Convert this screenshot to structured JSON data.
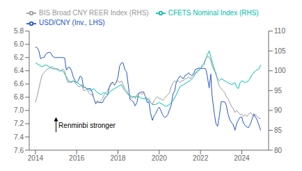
{
  "chart_data": {
    "type": "line",
    "legend": "upper left",
    "grid": false,
    "xlim": [
      2013.7,
      2025.3
    ],
    "xticks": [
      2014,
      2016,
      2018,
      2020,
      2022,
      2024
    ],
    "ylim": [
      7.6,
      5.8
    ],
    "yticks": [
      5.8,
      {
        "value": 6.0,
        "label": "6.0"
      },
      6.2,
      6.4,
      6.6,
      6.8,
      {
        "value": 7.0,
        "label": "7.0"
      },
      7.2,
      7.4,
      7.6
    ],
    "y2lim": [
      80,
      110
    ],
    "y2ticks": [
      80,
      85,
      90,
      95,
      100,
      105,
      110
    ],
    "annotations": [
      {
        "text": "Renminbi stronger",
        "x": 2015.12,
        "y": 7.24,
        "arrow_from": [
          2015.0,
          7.33
        ],
        "arrow_to": [
          2015.0,
          7.1
        ]
      }
    ],
    "series": [
      {
        "name": "USD/CNY (Inv., LHS)",
        "color": "#2255cc",
        "x": [
          2014.0,
          2014.05,
          2014.1,
          2014.17,
          2014.25,
          2014.33,
          2014.42,
          2014.5,
          2014.58,
          2014.67,
          2014.75,
          2014.83,
          2014.92,
          2015.0,
          2015.08,
          2015.17,
          2015.25,
          2015.33,
          2015.42,
          2015.5,
          2015.58,
          2015.67,
          2015.75,
          2015.83,
          2015.92,
          2016.0,
          2016.08,
          2016.17,
          2016.25,
          2016.33,
          2016.42,
          2016.5,
          2016.58,
          2016.67,
          2016.75,
          2016.83,
          2016.92,
          2017.0,
          2017.08,
          2017.17,
          2017.25,
          2017.33,
          2017.42,
          2017.5,
          2017.58,
          2017.67,
          2017.75,
          2017.83,
          2017.92,
          2018.0,
          2018.08,
          2018.17,
          2018.25,
          2018.33,
          2018.42,
          2018.5,
          2018.58,
          2018.67,
          2018.75,
          2018.83,
          2018.92,
          2019.0,
          2019.08,
          2019.17,
          2019.25,
          2019.33,
          2019.42,
          2019.5,
          2019.58,
          2019.67,
          2019.75,
          2019.83,
          2019.92,
          2020.0,
          2020.08,
          2020.17,
          2020.25,
          2020.33,
          2020.42,
          2020.5,
          2020.58,
          2020.67,
          2020.75,
          2020.83,
          2020.92,
          2021.0,
          2021.08,
          2021.17,
          2021.25,
          2021.33,
          2021.42,
          2021.5,
          2021.58,
          2021.67,
          2021.75,
          2021.83,
          2021.92,
          2022.0,
          2022.08,
          2022.17,
          2022.25,
          2022.33,
          2022.42,
          2022.5,
          2022.55,
          2022.58,
          2022.67,
          2022.75,
          2022.83,
          2022.92,
          2023.0,
          2023.08,
          2023.17,
          2023.25,
          2023.33,
          2023.42,
          2023.5,
          2023.58,
          2023.67,
          2023.75,
          2023.83,
          2023.92,
          2024.0,
          2024.08,
          2024.17,
          2024.25,
          2024.33,
          2024.42,
          2024.5,
          2024.58,
          2024.67,
          2024.75,
          2024.83,
          2024.92
        ],
        "values": [
          6.05,
          6.04,
          6.06,
          6.1,
          6.22,
          6.2,
          6.2,
          6.15,
          6.13,
          6.12,
          6.13,
          6.18,
          6.2,
          6.2,
          6.2,
          6.2,
          6.2,
          6.2,
          6.21,
          6.39,
          6.35,
          6.35,
          6.4,
          6.49,
          6.55,
          6.58,
          6.55,
          6.48,
          6.5,
          6.65,
          6.65,
          6.68,
          6.67,
          6.67,
          6.72,
          6.82,
          6.9,
          6.87,
          6.88,
          6.88,
          6.88,
          6.83,
          6.79,
          6.77,
          6.65,
          6.6,
          6.57,
          6.62,
          6.57,
          6.5,
          6.33,
          6.28,
          6.28,
          6.38,
          6.42,
          6.62,
          6.83,
          6.85,
          6.87,
          6.93,
          6.88,
          6.75,
          6.73,
          6.72,
          6.72,
          6.79,
          6.88,
          6.87,
          7.04,
          7.15,
          7.08,
          7.05,
          6.98,
          6.95,
          7.0,
          7.07,
          7.1,
          7.1,
          7.06,
          6.99,
          6.92,
          6.75,
          6.7,
          6.57,
          6.52,
          6.48,
          6.5,
          6.52,
          6.47,
          6.46,
          6.43,
          6.46,
          6.47,
          6.44,
          6.38,
          6.37,
          6.36,
          6.36,
          6.37,
          6.36,
          6.37,
          6.48,
          6.66,
          6.45,
          6.73,
          6.82,
          7.05,
          7.2,
          7.24,
          7.07,
          6.87,
          6.87,
          6.87,
          6.92,
          7.05,
          7.14,
          7.18,
          7.21,
          7.3,
          7.2,
          7.15,
          7.1,
          7.1,
          7.19,
          7.23,
          7.25,
          7.26,
          7.2,
          7.13,
          7.05,
          7.1,
          7.15,
          7.22,
          7.3
        ]
      },
      {
        "name": "CFETS Nominal Index (RHS)",
        "color": "#00bfaa",
        "axis": "y2",
        "x": [
          2014.0,
          2014.17,
          2014.33,
          2014.5,
          2014.67,
          2014.83,
          2015.0,
          2015.17,
          2015.33,
          2015.5,
          2015.67,
          2015.83,
          2016.0,
          2016.17,
          2016.33,
          2016.5,
          2016.67,
          2016.83,
          2017.0,
          2017.17,
          2017.33,
          2017.5,
          2017.67,
          2017.83,
          2018.0,
          2018.17,
          2018.33,
          2018.5,
          2018.67,
          2018.83,
          2019.0,
          2019.17,
          2019.33,
          2019.5,
          2019.67,
          2019.83,
          2020.0,
          2020.17,
          2020.33,
          2020.5,
          2020.67,
          2020.83,
          2021.0,
          2021.17,
          2021.33,
          2021.5,
          2021.67,
          2021.83,
          2022.0,
          2022.08,
          2022.17,
          2022.25,
          2022.33,
          2022.42,
          2022.5,
          2022.58,
          2022.67,
          2022.75,
          2022.83,
          2022.92,
          2023.0,
          2023.17,
          2023.33,
          2023.5,
          2023.67,
          2023.75,
          2023.83,
          2023.92,
          2024.0,
          2024.17,
          2024.33,
          2024.5,
          2024.67,
          2024.83,
          2024.92
        ],
        "values": [
          102.0,
          101.5,
          101.0,
          101.5,
          101.0,
          100.5,
          100.5,
          100.0,
          100.0,
          98.5,
          97.0,
          97.5,
          97.0,
          96.5,
          96.0,
          95.5,
          95.0,
          95.5,
          94.5,
          94.0,
          94.5,
          94.0,
          95.0,
          95.5,
          96.0,
          96.5,
          95.0,
          94.0,
          93.5,
          93.5,
          93.5,
          93.0,
          93.0,
          92.5,
          91.5,
          91.5,
          92.0,
          91.5,
          91.0,
          91.5,
          92.5,
          94.0,
          96.0,
          96.5,
          97.0,
          97.5,
          98.5,
          100.0,
          100.5,
          101.0,
          101.5,
          103.0,
          104.0,
          105.0,
          103.5,
          102.0,
          100.5,
          99.0,
          98.0,
          97.5,
          98.0,
          97.5,
          97.0,
          96.5,
          97.0,
          96.0,
          95.5,
          97.0,
          97.5,
          97.0,
          97.5,
          99.0,
          100.0,
          100.5,
          101.5
        ]
      },
      {
        "name": "BIS Broad CNY REER Index (RHS)",
        "color": "#999999",
        "axis": "y2",
        "x": [
          2014.0,
          2014.08,
          2014.17,
          2014.25,
          2014.33,
          2014.42,
          2014.5,
          2014.58,
          2014.67,
          2014.75,
          2014.83,
          2014.92,
          2015.0,
          2015.08,
          2015.17,
          2015.25,
          2015.33,
          2015.42,
          2015.5,
          2015.58,
          2015.67,
          2015.75,
          2015.83,
          2015.92,
          2016.0,
          2016.08,
          2016.17,
          2016.25,
          2016.33,
          2016.42,
          2016.5,
          2016.58,
          2016.67,
          2016.75,
          2016.83,
          2016.92,
          2017.0,
          2017.08,
          2017.17,
          2017.25,
          2017.33,
          2017.42,
          2017.5,
          2017.58,
          2017.67,
          2017.75,
          2017.83,
          2017.92,
          2018.0,
          2018.08,
          2018.17,
          2018.25,
          2018.33,
          2018.42,
          2018.5,
          2018.58,
          2018.67,
          2018.75,
          2018.83,
          2018.92,
          2019.0,
          2019.08,
          2019.17,
          2019.25,
          2019.33,
          2019.42,
          2019.5,
          2019.58,
          2019.67,
          2019.75,
          2019.83,
          2019.92,
          2020.0,
          2020.08,
          2020.17,
          2020.25,
          2020.33,
          2020.42,
          2020.5,
          2020.58,
          2020.67,
          2020.75,
          2020.83,
          2020.92,
          2021.0,
          2021.08,
          2021.17,
          2021.25,
          2021.33,
          2021.42,
          2021.5,
          2021.58,
          2021.67,
          2021.75,
          2021.83,
          2021.92,
          2022.0,
          2022.08,
          2022.17,
          2022.25,
          2022.33,
          2022.42,
          2022.5,
          2022.58,
          2022.67,
          2022.75,
          2022.83,
          2022.92,
          2023.0,
          2023.08,
          2023.17,
          2023.25,
          2023.33,
          2023.42,
          2023.5,
          2023.58,
          2023.67,
          2023.75,
          2023.83,
          2023.92,
          2024.0,
          2024.08,
          2024.17,
          2024.25,
          2024.33,
          2024.42,
          2024.5,
          2024.58,
          2024.67,
          2024.75,
          2024.83,
          2024.92
        ],
        "values": [
          92.0,
          93.5,
          95.5,
          97.5,
          99.0,
          99.5,
          100.0,
          100.5,
          100.5,
          101.0,
          101.0,
          100.5,
          100.5,
          100.5,
          100.0,
          100.0,
          100.5,
          100.0,
          98.0,
          97.0,
          97.5,
          97.0,
          97.5,
          97.0,
          96.5,
          96.0,
          96.0,
          96.5,
          95.0,
          95.0,
          95.5,
          94.5,
          94.0,
          94.0,
          93.0,
          92.0,
          92.5,
          92.0,
          92.5,
          93.0,
          94.0,
          94.5,
          95.0,
          96.0,
          97.0,
          97.0,
          96.5,
          97.0,
          97.5,
          97.0,
          97.5,
          96.5,
          95.5,
          95.0,
          94.0,
          93.5,
          93.0,
          93.5,
          93.0,
          94.0,
          94.5,
          94.5,
          94.0,
          94.5,
          93.5,
          93.0,
          93.0,
          92.0,
          91.5,
          92.5,
          93.0,
          93.5,
          93.0,
          93.0,
          92.5,
          93.0,
          93.5,
          94.0,
          94.5,
          96.0,
          97.0,
          97.5,
          97.0,
          97.5,
          97.0,
          97.5,
          97.5,
          98.0,
          98.0,
          98.5,
          98.0,
          98.5,
          99.0,
          99.5,
          99.5,
          100.0,
          100.5,
          101.5,
          102.0,
          103.0,
          103.5,
          103.5,
          102.5,
          101.0,
          100.0,
          99.5,
          97.5,
          96.0,
          95.5,
          95.0,
          94.5,
          93.5,
          93.0,
          92.0,
          91.0,
          90.5,
          89.5,
          90.0,
          89.5,
          89.0,
          89.0,
          88.5,
          89.0,
          88.5,
          89.0,
          89.5,
          89.0,
          88.5,
          89.0,
          88.5,
          88.0,
          88.0
        ]
      }
    ]
  }
}
